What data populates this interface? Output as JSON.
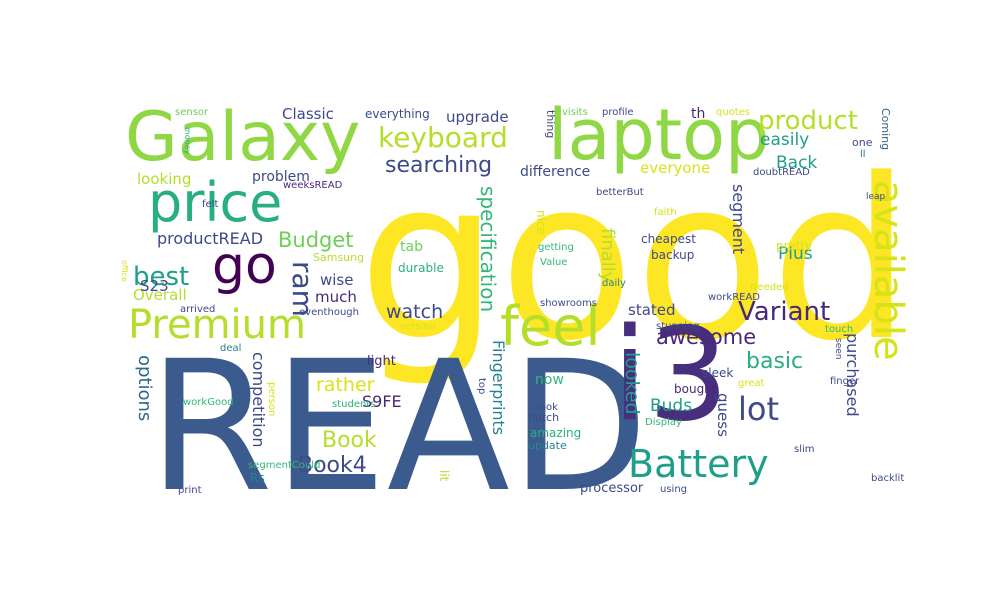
{
  "wordcloud": {
    "palette": [
      "#fde725",
      "#b5de2b",
      "#6ece58",
      "#35b779",
      "#1f9e89",
      "#26828e",
      "#31688e",
      "#3e4989",
      "#482878",
      "#440154"
    ],
    "words": [
      {
        "text": "good",
        "color": "#fde725"
      },
      {
        "text": "READ",
        "color": "#3b5b8f"
      },
      {
        "text": "i3",
        "color": "#472f7d"
      },
      {
        "text": "laptop",
        "color": "#8fd744"
      },
      {
        "text": "Galaxy",
        "color": "#8fd744"
      },
      {
        "text": "feel",
        "color": "#b5de2b"
      },
      {
        "text": "price",
        "color": "#29af7f"
      },
      {
        "text": "available",
        "color": "#d8e219"
      },
      {
        "text": "Premium",
        "color": "#b5de2b"
      },
      {
        "text": "Battery",
        "color": "#1f9e89"
      },
      {
        "text": "go",
        "color": "#440154"
      },
      {
        "text": "keyboard",
        "color": "#b5de2b"
      },
      {
        "text": "product",
        "color": "#b5de2b"
      },
      {
        "text": "Variant",
        "color": "#482878"
      },
      {
        "text": "lot",
        "color": "#3e4989"
      },
      {
        "text": "searching",
        "color": "#3e4989"
      },
      {
        "text": "Budget",
        "color": "#6ece58"
      },
      {
        "text": "best",
        "color": "#1f9e89"
      },
      {
        "text": "awesome",
        "color": "#482878"
      },
      {
        "text": "Book4",
        "color": "#3e4989"
      },
      {
        "text": "Book",
        "color": "#b5de2b"
      },
      {
        "text": "ram",
        "color": "#3e4989"
      },
      {
        "text": "basic",
        "color": "#29af7f"
      },
      {
        "text": "specification",
        "color": "#35b779"
      },
      {
        "text": "Classic",
        "color": "#3e4989"
      },
      {
        "text": "upgrade",
        "color": "#3e4989"
      },
      {
        "text": "productREAD",
        "color": "#3e4989"
      },
      {
        "text": "looking",
        "color": "#b5de2b"
      },
      {
        "text": "options",
        "color": "#31688e"
      },
      {
        "text": "competition",
        "color": "#3e4989"
      },
      {
        "text": "Fingerprints",
        "color": "#26828e"
      },
      {
        "text": "looked",
        "color": "#1f9e89"
      },
      {
        "text": "finally",
        "color": "#b5de2b"
      },
      {
        "text": "rather",
        "color": "#d8e219"
      },
      {
        "text": "watch",
        "color": "#3e4989"
      },
      {
        "text": "Plus",
        "color": "#1f9e89"
      },
      {
        "text": "segment",
        "color": "#3e4989"
      },
      {
        "text": "purchased",
        "color": "#3e4989"
      },
      {
        "text": "Overall",
        "color": "#b5de2b"
      },
      {
        "text": "easily",
        "color": "#1f9e89"
      },
      {
        "text": "Back",
        "color": "#1f9e89"
      },
      {
        "text": "S23",
        "color": "#3e4989"
      },
      {
        "text": "S9FE",
        "color": "#482878"
      },
      {
        "text": "Buds",
        "color": "#1f9e89"
      },
      {
        "text": "guess",
        "color": "#3e4989"
      },
      {
        "text": "everyone",
        "color": "#d8e219"
      },
      {
        "text": "wise",
        "color": "#3e4989"
      },
      {
        "text": "much",
        "color": "#482878"
      },
      {
        "text": "problem",
        "color": "#3e4989"
      },
      {
        "text": "everything",
        "color": "#3e4989"
      },
      {
        "text": "stated",
        "color": "#3e4989"
      },
      {
        "text": "now",
        "color": "#35b779"
      },
      {
        "text": "difference",
        "color": "#3e4989"
      },
      {
        "text": "cheapest",
        "color": "#3e4989"
      },
      {
        "text": "light",
        "color": "#482878"
      },
      {
        "text": "tab",
        "color": "#6ece58"
      },
      {
        "text": "durable",
        "color": "#29af7f"
      },
      {
        "text": "amazing",
        "color": "#29af7f"
      },
      {
        "text": "backup",
        "color": "#3e4989"
      },
      {
        "text": "Samsung",
        "color": "#b5de2b"
      },
      {
        "text": "pretty",
        "color": "#d8e219"
      },
      {
        "text": "sleek",
        "color": "#3e4989"
      },
      {
        "text": "bought",
        "color": "#482878"
      },
      {
        "text": "processor",
        "color": "#3e4989"
      },
      {
        "text": "th",
        "color": "#482878"
      },
      {
        "text": "nice",
        "color": "#d8e219"
      },
      {
        "text": "thing",
        "color": "#3e4989"
      },
      {
        "text": "lit",
        "color": "#b5de2b"
      },
      {
        "text": "notch",
        "color": "#3e4989"
      },
      {
        "text": "update",
        "color": "#26828e"
      },
      {
        "text": "Rs",
        "color": "#26828e"
      },
      {
        "text": "Coming",
        "color": "#31688e"
      },
      {
        "text": "one",
        "color": "#3e4989"
      },
      {
        "text": "ll",
        "color": "#26828e"
      },
      {
        "text": "quotes",
        "color": "#d8e219"
      },
      {
        "text": "visits",
        "color": "#6ece58"
      },
      {
        "text": "profile",
        "color": "#3e4989"
      },
      {
        "text": "weeksREAD",
        "color": "#482878"
      },
      {
        "text": "betterBut",
        "color": "#3e4989"
      },
      {
        "text": "doubtREAD",
        "color": "#3e4989"
      },
      {
        "text": "sensor",
        "color": "#6ece58"
      },
      {
        "text": "money",
        "color": "#29af7f"
      },
      {
        "text": "felt",
        "color": "#3e4989"
      },
      {
        "text": "faith",
        "color": "#d8e219"
      },
      {
        "text": "leap",
        "color": "#3e4989"
      },
      {
        "text": "office",
        "color": "#d8e219"
      },
      {
        "text": "getting",
        "color": "#35b779"
      },
      {
        "text": "Value",
        "color": "#35b779"
      },
      {
        "text": "daily",
        "color": "#26828e"
      },
      {
        "text": "Needed",
        "color": "#d8e219"
      },
      {
        "text": "workREAD",
        "color": "#3e4989"
      },
      {
        "text": "showrooms",
        "color": "#3e4989"
      },
      {
        "text": "stunning",
        "color": "#3e4989"
      },
      {
        "text": "touch",
        "color": "#35b779"
      },
      {
        "text": "arrived",
        "color": "#3e4989"
      },
      {
        "text": "eventhough",
        "color": "#3e4989"
      },
      {
        "text": "version",
        "color": "#d8e219"
      },
      {
        "text": "deal",
        "color": "#26828e"
      },
      {
        "text": "seen",
        "color": "#3e4989"
      },
      {
        "text": "great",
        "color": "#d8e219"
      },
      {
        "text": "finger",
        "color": "#3e4989"
      },
      {
        "text": "workGood",
        "color": "#35b779"
      },
      {
        "text": "top",
        "color": "#3e4989"
      },
      {
        "text": "students",
        "color": "#29af7f"
      },
      {
        "text": "took",
        "color": "#3e4989"
      },
      {
        "text": "Display",
        "color": "#35b779"
      },
      {
        "text": "person",
        "color": "#d8e219"
      },
      {
        "text": "segmentCould",
        "color": "#35b779"
      },
      {
        "text": "slim",
        "color": "#3e4989"
      },
      {
        "text": "backlit",
        "color": "#3e4989"
      },
      {
        "text": "print",
        "color": "#3e4989"
      },
      {
        "text": "using",
        "color": "#3e4989"
      },
      {
        "text": "expandableOtherwise",
        "color": "#d8e219"
      }
    ]
  }
}
